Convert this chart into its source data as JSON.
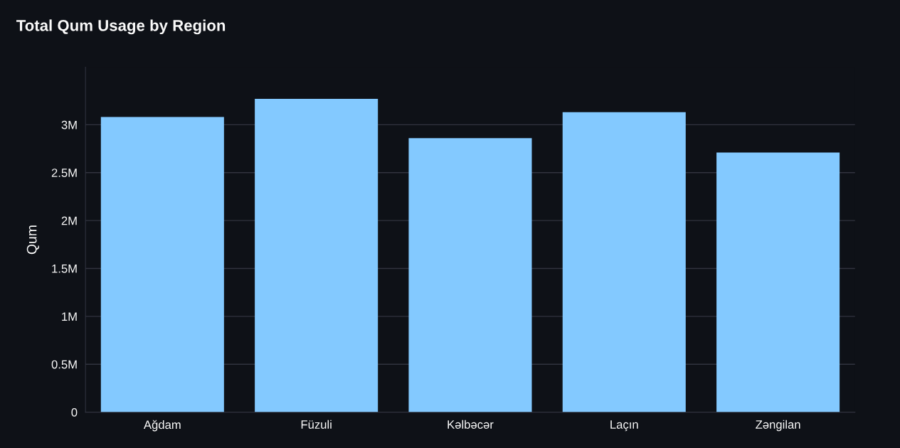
{
  "chart_data": {
    "type": "bar",
    "title": "Total Qum Usage by Region",
    "ylabel": "Qum",
    "categories": [
      "Ağdam",
      "Füzuli",
      "Kəlbəcər",
      "Laçın",
      "Zəngilan"
    ],
    "values": [
      3080000,
      3270000,
      2860000,
      3130000,
      2710000
    ],
    "color": "#83c9ff",
    "ylim": [
      0,
      3600000
    ],
    "yticks": [
      0,
      {
        "value": 500000,
        "label": "0.5M"
      },
      {
        "value": 1000000,
        "label": "1M"
      },
      {
        "value": 1500000,
        "label": "1.5M"
      },
      {
        "value": 2000000,
        "label": "2M"
      },
      {
        "value": 2500000,
        "label": "2.5M"
      },
      {
        "value": 3000000,
        "label": "3M"
      }
    ],
    "grid": "y",
    "legend": false
  }
}
